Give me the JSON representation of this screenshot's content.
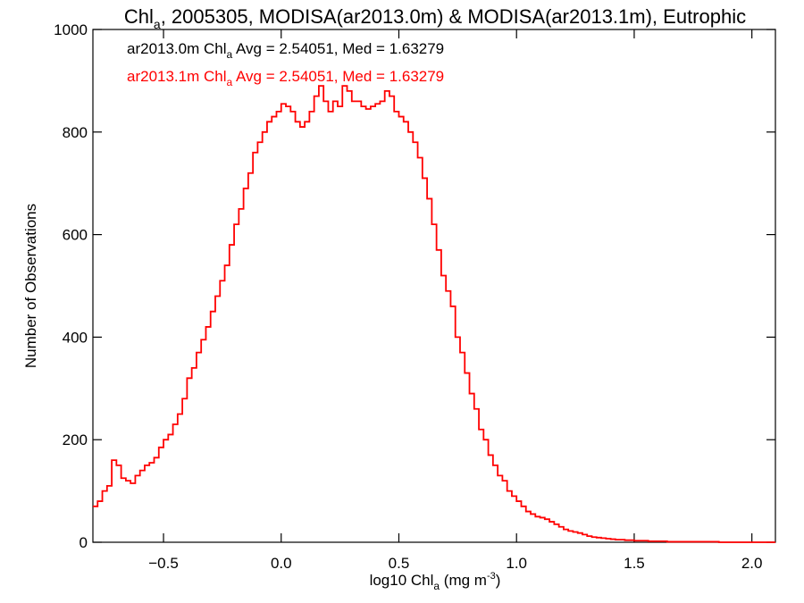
{
  "chart_data": {
    "type": "line",
    "title": {
      "prefix": "Chl",
      "sub": "a",
      "suffix": ", 2005305, MODISA(ar2013.0m) & MODISA(ar2013.1m), Eutrophic"
    },
    "xlabel": {
      "prefix": "log10 Chl",
      "sub": "a",
      "mid": " (mg m",
      "sup": "-3",
      "suffix": ")"
    },
    "ylabel": "Number of Observations",
    "xlim": [
      -0.8,
      2.1
    ],
    "ylim": [
      0,
      1000
    ],
    "xticks": [
      {
        "value": -0.5,
        "label": "−0.5"
      },
      {
        "value": 0.0,
        "label": "0.0"
      },
      {
        "value": 0.5,
        "label": "0.5"
      },
      {
        "value": 1.0,
        "label": "1.0"
      },
      {
        "value": 1.5,
        "label": "1.5"
      },
      {
        "value": 2.0,
        "label": "2.0"
      }
    ],
    "yticks": [
      {
        "value": 0,
        "label": "0"
      },
      {
        "value": 200,
        "label": "200"
      },
      {
        "value": 400,
        "label": "400"
      },
      {
        "value": 600,
        "label": "600"
      },
      {
        "value": 800,
        "label": "800"
      },
      {
        "value": 1000,
        "label": "1000"
      }
    ],
    "grid": false,
    "annotations": [
      {
        "series": "ar2013.0m",
        "color": "#000000",
        "prefix": "ar2013.0m Chl",
        "sub": "a",
        "suffix": " Avg = 2.54051, Med = 1.63279"
      },
      {
        "series": "ar2013.1m",
        "color": "#ff0000",
        "prefix": "ar2013.1m Chl",
        "sub": "a",
        "suffix": " Avg = 2.54051, Med = 1.63279"
      }
    ],
    "series": [
      {
        "name": "ar2013.1m",
        "color": "#ff0000",
        "step": true,
        "x": [
          -0.8,
          -0.78,
          -0.76,
          -0.74,
          -0.72,
          -0.7,
          -0.68,
          -0.66,
          -0.64,
          -0.62,
          -0.6,
          -0.58,
          -0.56,
          -0.54,
          -0.52,
          -0.5,
          -0.48,
          -0.46,
          -0.44,
          -0.42,
          -0.4,
          -0.38,
          -0.36,
          -0.34,
          -0.32,
          -0.3,
          -0.28,
          -0.26,
          -0.24,
          -0.22,
          -0.2,
          -0.18,
          -0.16,
          -0.14,
          -0.12,
          -0.1,
          -0.08,
          -0.06,
          -0.04,
          -0.02,
          0.0,
          0.02,
          0.04,
          0.06,
          0.08,
          0.1,
          0.12,
          0.14,
          0.16,
          0.18,
          0.2,
          0.22,
          0.24,
          0.26,
          0.28,
          0.3,
          0.32,
          0.34,
          0.36,
          0.38,
          0.4,
          0.42,
          0.44,
          0.46,
          0.48,
          0.5,
          0.52,
          0.54,
          0.56,
          0.58,
          0.6,
          0.62,
          0.64,
          0.66,
          0.68,
          0.7,
          0.72,
          0.74,
          0.76,
          0.78,
          0.8,
          0.82,
          0.84,
          0.86,
          0.88,
          0.9,
          0.92,
          0.94,
          0.96,
          0.98,
          1.0,
          1.02,
          1.04,
          1.06,
          1.08,
          1.1,
          1.12,
          1.14,
          1.16,
          1.18,
          1.2,
          1.22,
          1.24,
          1.26,
          1.28,
          1.3,
          1.32,
          1.34,
          1.36,
          1.38,
          1.4,
          1.42,
          1.44,
          1.46,
          1.48,
          1.5,
          1.52,
          1.54,
          1.56,
          1.58,
          1.6,
          1.62,
          1.64,
          1.66,
          1.68,
          1.7,
          1.72,
          1.74,
          1.76,
          1.78,
          1.8,
          1.82,
          1.84,
          1.86,
          1.88,
          1.9,
          1.92,
          1.94,
          1.96,
          1.98,
          2.0,
          2.02,
          2.04,
          2.06,
          2.08
        ],
        "y": [
          70,
          80,
          100,
          110,
          160,
          150,
          125,
          120,
          115,
          130,
          140,
          150,
          155,
          165,
          185,
          200,
          210,
          230,
          250,
          280,
          320,
          340,
          370,
          395,
          420,
          450,
          480,
          510,
          540,
          580,
          620,
          650,
          690,
          720,
          760,
          780,
          800,
          820,
          830,
          840,
          855,
          850,
          840,
          820,
          810,
          820,
          840,
          870,
          890,
          860,
          840,
          860,
          850,
          890,
          880,
          860,
          860,
          850,
          845,
          850,
          855,
          860,
          880,
          870,
          840,
          830,
          820,
          800,
          780,
          750,
          710,
          670,
          620,
          570,
          520,
          490,
          460,
          400,
          370,
          330,
          290,
          260,
          220,
          200,
          170,
          150,
          130,
          120,
          100,
          90,
          80,
          70,
          60,
          55,
          50,
          48,
          45,
          40,
          35,
          30,
          25,
          22,
          20,
          18,
          15,
          12,
          10,
          9,
          8,
          7,
          6,
          5,
          5,
          4,
          4,
          3,
          3,
          3,
          2,
          2,
          2,
          2,
          1,
          1,
          1,
          1,
          1,
          1,
          1,
          1,
          1,
          1,
          1,
          0,
          0,
          0,
          0,
          0,
          0,
          0,
          0,
          0,
          0,
          0,
          0
        ]
      }
    ]
  }
}
